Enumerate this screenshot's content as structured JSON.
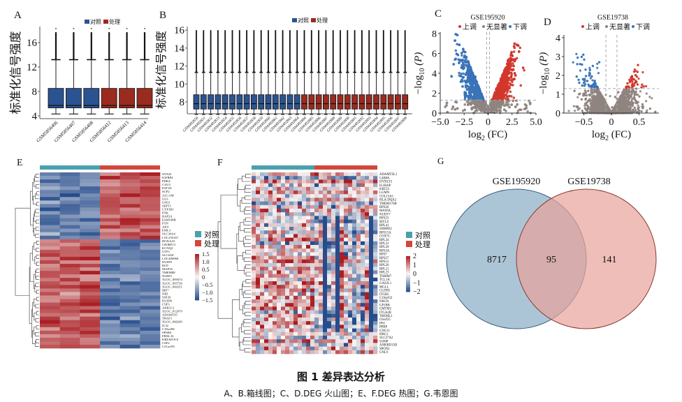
{
  "panel_labels": {
    "A": "A",
    "B": "B",
    "C": "C",
    "D": "D",
    "E": "E",
    "F": "F",
    "G": "G"
  },
  "legend": {
    "control": "对照",
    "treat": "处理",
    "up": "上调",
    "ns": "无显著",
    "down": "下调"
  },
  "colors": {
    "control": "#2b5391",
    "treat": "#9b2a1f",
    "up": "#d2372c",
    "down": "#3a73b8",
    "ns": "#8f8480",
    "annot_control": "#4aa1ad",
    "annot_treat": "#d2473a",
    "venn_left": "#8fb1c9",
    "venn_right": "#e8a39a"
  },
  "chart_data": {
    "boxplot_A": {
      "type": "box",
      "ylabel": "标准化信号强度",
      "ylim": [
        4,
        18.5
      ],
      "yticks": [
        "4",
        "8",
        "12",
        "16"
      ],
      "samples": [
        "GSM5856406",
        "GSM5856407",
        "GSM5856408",
        "GSM5856412",
        "GSM5856413",
        "GSM5856414"
      ],
      "groups": [
        "control",
        "control",
        "control",
        "treat",
        "treat",
        "treat"
      ],
      "stats": {
        "low": 4.3,
        "q1": 5.3,
        "median": 5.7,
        "q3": 8.5,
        "upper_whisker": 13.2,
        "max": 17.7,
        "outlier": 18.3
      }
    },
    "boxplot_B": {
      "type": "box",
      "ylabel": "标准化信号强度",
      "ylim": [
        6.3,
        16.2
      ],
      "yticks": [
        "8",
        "10",
        "12",
        "14",
        "16"
      ],
      "samples": [
        "GSM492850",
        "GSM492851",
        "GSM492852",
        "GSM492853",
        "GSM492854",
        "GSM492855",
        "GSM492856",
        "GSM492857",
        "GSM492858",
        "GSM492859",
        "GSM492860",
        "GSM492861",
        "GSM492862",
        "GSM492863",
        "GSM492864",
        "GSM492884",
        "GSM492885",
        "GSM492886",
        "GSM492887",
        "GSM492888",
        "GSM492889",
        "GSM492890",
        "GSM492891",
        "GSM492892",
        "GSM492893",
        "GSM492894",
        "GSM492895",
        "GSM492896",
        "GSM492897",
        "GSM492898"
      ],
      "groups_split": 15,
      "stats": {
        "low": 6.6,
        "q1": 7.2,
        "median": 7.8,
        "q3": 8.8,
        "upper_whisker": 11.3,
        "max": 16.0
      }
    },
    "volcano_C": {
      "type": "scatter",
      "title": "GSE195920",
      "xlabel": {
        "base": "log",
        "sub": "2",
        "rest": " (FC)"
      },
      "ylabel": {
        "pre": "−log",
        "sub": "10",
        "rest": " (P)"
      },
      "xlim": [
        -5,
        5
      ],
      "ylim": [
        0,
        8
      ],
      "xticks": [
        "−5.0",
        "−2.5",
        "0",
        "2.5",
        "5.0"
      ],
      "xtick_values": [
        -5,
        -2.5,
        0,
        2.5,
        5
      ],
      "yticks": [
        "0",
        "2",
        "4",
        "6",
        "8"
      ],
      "ytick_values": [
        0,
        2,
        4,
        6,
        8
      ],
      "fc_lines": [
        -0.15,
        0.15
      ],
      "p_line": 1.3
    },
    "volcano_D": {
      "type": "scatter",
      "title": "GSE19738",
      "xlabel": {
        "base": "log",
        "sub": "2",
        "rest": " (FC)"
      },
      "ylabel": {
        "pre": "−log",
        "sub": "10",
        "rest": " (P)"
      },
      "xlim": [
        -0.86,
        0.86
      ],
      "ylim": [
        0,
        4.1
      ],
      "xticks": [
        "−0.5",
        "0",
        "0.5"
      ],
      "xtick_values": [
        -0.5,
        0,
        0.5
      ],
      "yticks": [
        "0",
        "1",
        "2",
        "3",
        "4"
      ],
      "ytick_values": [
        0,
        1,
        2,
        3,
        4
      ],
      "fc_lines": [
        -0.1,
        0.1
      ],
      "p_line": 1.3
    },
    "heatmap_E": {
      "type": "heatmap",
      "columns_control": 3,
      "columns_treat": 3,
      "up_in_treat_rows": 19,
      "scale": [
        "1.5",
        "1.0",
        "0.5",
        "0",
        "−0.5",
        "−1.0",
        "−1.5"
      ],
      "rows": [
        "SYNJ2",
        "IGFBP4",
        "PDK4",
        "CALU",
        "FAT1D",
        "SCP2",
        "ALCAM",
        "GLS",
        "USO1",
        "SEPT1",
        "CYP1B1",
        "PXK",
        "RAP2A",
        "FAM198B",
        "PTN",
        "AK4",
        "EML3",
        "SLC30A4",
        "LOC255167",
        "HOXA10",
        "C8ORF13",
        "KCNQ2",
        "UTF1",
        "SLC6A8",
        "LOC400968",
        "DUSP5",
        "RCP",
        "MAP1S",
        "TMEM88",
        "NLRP1",
        "XLOC_009474",
        "XLOC_005736",
        "XLOC_000251",
        "IRF7",
        "NID",
        "SNCB",
        "DUSP6",
        "CSF3",
        "AKR1C2",
        "XLOC_012070",
        "ADAMTS5",
        "TRAF1",
        "XLOC_006200",
        "IL32",
        "C18orf96",
        "SPSB4",
        "FBXL16",
        "KRTAP19-8",
        "CSF2",
        "C21orf59"
      ]
    },
    "heatmap_F": {
      "type": "heatmap",
      "columns_control": 15,
      "columns_treat": 15,
      "scale": [
        "2",
        "1",
        "0",
        "−1",
        "−2"
      ],
      "rows": [
        "ADAMTSL1",
        "C4BPA",
        "DYNLT3",
        "IL1RAP",
        "KRT23",
        "LGMN",
        "COL13A1",
        "HLA-DQA2",
        "TMEM176B",
        "RPS26",
        "MANSL",
        "NUDT7",
        "RPS23",
        "MYL6",
        "RPL41",
        "SNRPD2",
        "RPS15A",
        "COX7C",
        "RPL34",
        "RPL31",
        "RPL39",
        "RPS3A",
        "RPS7",
        "RPS27",
        "RPS13",
        "RPL26",
        "RPL21",
        "RPL23",
        "TOMM7",
        "TCL1A",
        "GAS2L1",
        "MGLL",
        "CLDN5",
        "ITGB5",
        "C19orf33",
        "NRGN",
        "GP1BB",
        "CMTM5",
        "ITGA2B",
        "TREML1",
        "C6orf25",
        "PF4",
        "PPBP",
        "GNG11",
        "HBG1",
        "SLC27A2",
        "S100P",
        "ANKRD13D",
        "SPON2",
        "GNLY"
      ]
    },
    "venn_G": {
      "type": "venn",
      "sets": [
        "GSE195920",
        "GSE19738"
      ],
      "left_only": "8717",
      "overlap": "95",
      "right_only": "141"
    }
  },
  "caption": {
    "title": "图 1    差异表达分析",
    "subtitle": "A、B.箱线图；C、D.DEG 火山图；E、F.DEG 热图；G.韦恩图"
  }
}
